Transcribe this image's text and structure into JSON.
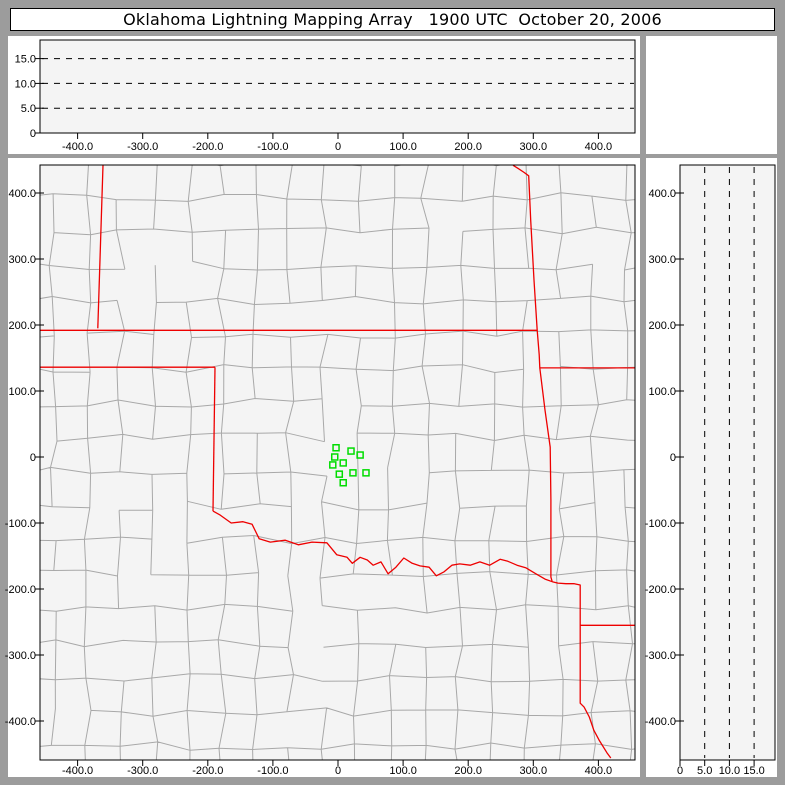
{
  "window": {
    "title": "Oklahoma Lightning Mapping Array   1900 UTC  October 20, 2006"
  },
  "colors": {
    "background": "#9c9c9c",
    "panel": "#ffffff",
    "plot_bg": "#f4f4f4",
    "axis": "#000000",
    "gridline": "#000000",
    "county_line": "#a8a8a8",
    "state_border": "#ee0000",
    "station": "#00dd00",
    "title_text": "#000000"
  },
  "county_grid": {
    "seed": 1337,
    "cell_km": 52,
    "jitter_km": 7,
    "skip_ratio": 0.1
  },
  "chart_data": [
    {
      "id": "altitude_vs_eastwest",
      "type": "scatter",
      "position": "top",
      "x_range": [
        -458,
        456
      ],
      "y_range": [
        0,
        18.8
      ],
      "x_ticks": [
        "-400.0",
        "-300.0",
        "-200.0",
        "-100.0",
        "0",
        "100.0",
        "200.0",
        "300.0",
        "400.0"
      ],
      "x_tick_values": [
        -400,
        -300,
        -200,
        -100,
        0,
        100,
        200,
        300,
        400
      ],
      "y_ticks": [
        "0",
        "5.0",
        "10.0",
        "15.0"
      ],
      "y_tick_values": [
        0,
        5,
        10,
        15
      ],
      "altitude_gridlines": [
        5,
        10,
        15
      ],
      "points": []
    },
    {
      "id": "plan_view_map",
      "type": "scatter",
      "position": "center",
      "x_range": [
        -458,
        456
      ],
      "y_range": [
        -459,
        442
      ],
      "x_ticks": [
        "-400.0",
        "-300.0",
        "-200.0",
        "-100.0",
        "0",
        "100.0",
        "200.0",
        "300.0",
        "400.0"
      ],
      "x_tick_values": [
        -400,
        -300,
        -200,
        -100,
        0,
        100,
        200,
        300,
        400
      ],
      "y_ticks": [
        "400.0",
        "300.0",
        "200.0",
        "100.0",
        "0",
        "-100.0",
        "-200.0",
        "-300.0",
        "-400.0"
      ],
      "y_tick_values": [
        400,
        300,
        200,
        100,
        0,
        -100,
        -200,
        -300,
        -400
      ],
      "stations_km": [
        [
          -3,
          14
        ],
        [
          20,
          9
        ],
        [
          -5,
          0
        ],
        [
          34,
          3
        ],
        [
          -8,
          -12
        ],
        [
          8,
          -9
        ],
        [
          2,
          -26
        ],
        [
          23,
          -24
        ],
        [
          43,
          -24
        ],
        [
          8,
          -39
        ]
      ],
      "state_borders_km": [
        [
          [
            -361,
            442
          ],
          [
            -369,
            195
          ]
        ],
        [
          [
            -458,
            192
          ],
          [
            306,
            192
          ]
        ],
        [
          [
            -458,
            136
          ],
          [
            -189,
            136
          ]
        ],
        [
          [
            -189,
            136
          ],
          [
            -192,
            -82
          ]
        ],
        [
          [
            -192,
            -82
          ],
          [
            -181,
            -88
          ],
          [
            -164,
            -100
          ],
          [
            -146,
            -98
          ],
          [
            -132,
            -102
          ],
          [
            -121,
            -124
          ],
          [
            -104,
            -129
          ],
          [
            -81,
            -126
          ],
          [
            -61,
            -133
          ],
          [
            -40,
            -129
          ],
          [
            -17,
            -130
          ],
          [
            -2,
            -148
          ],
          [
            14,
            -152
          ],
          [
            22,
            -161
          ],
          [
            34,
            -152
          ],
          [
            45,
            -156
          ],
          [
            54,
            -164
          ],
          [
            66,
            -159
          ],
          [
            77,
            -177
          ],
          [
            89,
            -167
          ],
          [
            101,
            -153
          ],
          [
            114,
            -161
          ],
          [
            126,
            -165
          ],
          [
            140,
            -167
          ],
          [
            151,
            -180
          ],
          [
            163,
            -174
          ],
          [
            175,
            -164
          ],
          [
            187,
            -162
          ],
          [
            203,
            -164
          ],
          [
            218,
            -159
          ],
          [
            233,
            -164
          ],
          [
            249,
            -155
          ],
          [
            261,
            -158
          ],
          [
            275,
            -164
          ],
          [
            289,
            -168
          ],
          [
            304,
            -177
          ],
          [
            318,
            -185
          ],
          [
            329,
            -189
          ]
        ],
        [
          [
            269,
            442
          ],
          [
            277,
            437
          ],
          [
            286,
            431
          ],
          [
            293,
            426
          ],
          [
            296,
            359
          ],
          [
            301,
            268
          ],
          [
            306,
            192
          ],
          [
            309,
            155
          ],
          [
            310,
            135
          ],
          [
            318,
            71
          ],
          [
            326,
            15
          ],
          [
            327,
            -65
          ],
          [
            327,
            -182
          ],
          [
            329,
            -189
          ]
        ],
        [
          [
            310,
            135
          ],
          [
            456,
            135
          ]
        ],
        [
          [
            329,
            -189
          ],
          [
            338,
            -191
          ],
          [
            350,
            -192
          ],
          [
            363,
            -192
          ],
          [
            372,
            -194
          ],
          [
            372,
            -255
          ],
          [
            372,
            -373
          ],
          [
            378,
            -379
          ],
          [
            386,
            -394
          ],
          [
            393,
            -414
          ],
          [
            401,
            -429
          ],
          [
            413,
            -448
          ],
          [
            419,
            -456
          ]
        ],
        [
          [
            372,
            -255
          ],
          [
            456,
            -255
          ]
        ]
      ],
      "points": []
    },
    {
      "id": "altitude_vs_northsouth",
      "type": "scatter",
      "position": "right",
      "x_range": [
        0,
        19.2
      ],
      "y_range": [
        -459,
        442
      ],
      "x_ticks": [
        "0",
        "5.0",
        "10.0",
        "15.0"
      ],
      "x_tick_values": [
        0,
        5,
        10,
        15
      ],
      "y_ticks": [
        "400.0",
        "300.0",
        "200.0",
        "100.0",
        "0",
        "-100.0",
        "-200.0",
        "-300.0",
        "-400.0"
      ],
      "y_tick_values": [
        400,
        300,
        200,
        100,
        0,
        -100,
        -200,
        -300,
        -400
      ],
      "altitude_gridlines": [
        5,
        10,
        15
      ],
      "points": []
    }
  ]
}
